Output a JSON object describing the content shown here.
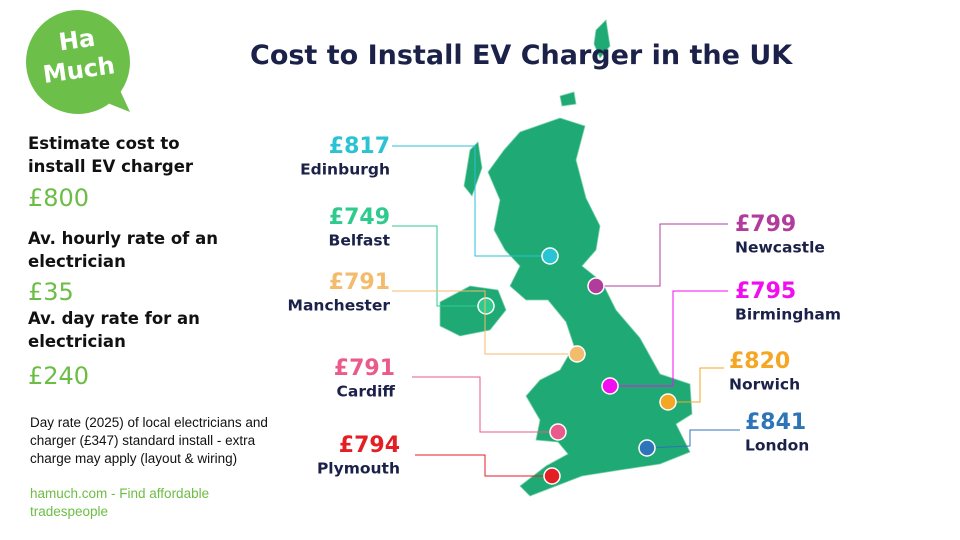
{
  "logo": {
    "line1": "Ha",
    "line2": "Much"
  },
  "title": "Cost to Install EV Charger in the UK",
  "sidebar": [
    {
      "label": "Estimate cost to install EV charger",
      "value": "£800"
    },
    {
      "label": "Av. hourly rate of an electrician",
      "value": "£35"
    },
    {
      "label": "Av. day rate for an electrician",
      "value": "£240"
    }
  ],
  "note": "Day rate (2025) of local electricians and charger  (£347) standard install - extra charge may apply (layout & wiring)",
  "link": "hamuch.com - Find affordable tradespeople",
  "cities": [
    {
      "name": "Edinburgh",
      "price": "£817",
      "color": "#29c3d3"
    },
    {
      "name": "Belfast",
      "price": "£749",
      "color": "#2fcb8e"
    },
    {
      "name": "Manchester",
      "price": "£791",
      "color": "#f3bb6c"
    },
    {
      "name": "Cardiff",
      "price": "£791",
      "color": "#ea5a8a"
    },
    {
      "name": "Plymouth",
      "price": "£794",
      "color": "#e31e24"
    },
    {
      "name": "Newcastle",
      "price": "£799",
      "color": "#b23c9b"
    },
    {
      "name": "Birmingham",
      "price": "£795",
      "color": "#f20cf0"
    },
    {
      "name": "Norwich",
      "price": "£820",
      "color": "#f5a623"
    },
    {
      "name": "London",
      "price": "£841",
      "color": "#2e74b8"
    }
  ]
}
